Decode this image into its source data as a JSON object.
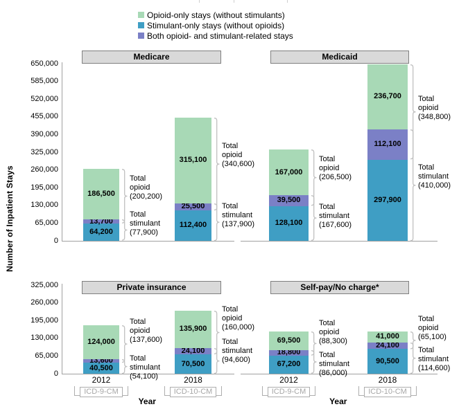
{
  "chart_data": {
    "type": "bar",
    "subtype": "stacked-grouped-small-multiples",
    "title": "",
    "xlabel": "Year",
    "ylabel": "Number of Inpatient Stays",
    "grid": false,
    "legend_position": "top-center",
    "legend": [
      {
        "key": "opioid_only",
        "label": "Opioid-only stays (without stimulants)",
        "color": "#A8D9B6"
      },
      {
        "key": "stimulant_only",
        "label": "Stimulant-only stays (without opioids)",
        "color": "#3F9EC4"
      },
      {
        "key": "both",
        "label": "Both opioid- and stimulant-related stays",
        "color": "#7B80C6"
      }
    ],
    "colors": {
      "opioid_only": "#A8D9B6",
      "stimulant_only": "#3F9EC4",
      "both": "#7B80C6",
      "panel_header_fill": "#D9D9D9",
      "panel_header_border": "#7F7F7F",
      "axis_line": "#A0A0A0",
      "bracket": "#C0C0C0",
      "icd_gray": "#A6A6A6"
    },
    "total_label_words": {
      "opioid": [
        "Total",
        "opioid"
      ],
      "stimulant": [
        "Total",
        "stimulant"
      ]
    },
    "rows": [
      {
        "ylim": [
          0,
          650000
        ],
        "ytick_step": 65000,
        "yticks": [
          0,
          65000,
          130000,
          195000,
          260000,
          325000,
          390000,
          455000,
          520000,
          585000,
          650000
        ],
        "year_axis": false,
        "panels": [
          {
            "title": "Medicare",
            "bars": [
              {
                "year": "2012",
                "opioid_only": 186500,
                "both": 13700,
                "stimulant_only": 64200,
                "total_opioid": 200200,
                "total_stimulant": 77900
              },
              {
                "year": "2018",
                "opioid_only": 315100,
                "both": 25500,
                "stimulant_only": 112400,
                "total_opioid": 340600,
                "total_stimulant": 137900
              }
            ]
          },
          {
            "title": "Medicaid",
            "bars": [
              {
                "year": "2012",
                "opioid_only": 167000,
                "both": 39500,
                "stimulant_only": 128100,
                "total_opioid": 206500,
                "total_stimulant": 167600
              },
              {
                "year": "2018",
                "opioid_only": 236700,
                "both": 112100,
                "stimulant_only": 297900,
                "total_opioid": 348800,
                "total_stimulant": 410000
              }
            ]
          }
        ]
      },
      {
        "ylim": [
          0,
          325000
        ],
        "ytick_step": 65000,
        "yticks": [
          0,
          65000,
          130000,
          195000,
          260000,
          325000
        ],
        "year_axis": true,
        "panels": [
          {
            "title": "Private insurance",
            "bars": [
              {
                "year": "2012",
                "icd": "ICD-9-CM",
                "opioid_only": 124000,
                "both": 13600,
                "stimulant_only": 40500,
                "total_opioid": 137600,
                "total_stimulant": 54100
              },
              {
                "year": "2018",
                "icd": "ICD-10-CM",
                "opioid_only": 135900,
                "both": 24100,
                "stimulant_only": 70500,
                "total_opioid": 160000,
                "total_stimulant": 94600
              }
            ]
          },
          {
            "title": "Self-pay/No charge*",
            "bars": [
              {
                "year": "2012",
                "icd": "ICD-9-CM",
                "opioid_only": 69500,
                "both": 18800,
                "stimulant_only": 67200,
                "total_opioid": 88300,
                "total_stimulant": 86000
              },
              {
                "year": "2018",
                "icd": "ICD-10-CM",
                "opioid_only": 41000,
                "both": 24100,
                "stimulant_only": 90500,
                "total_opioid": 65100,
                "total_stimulant": 114600
              }
            ]
          }
        ]
      }
    ]
  }
}
